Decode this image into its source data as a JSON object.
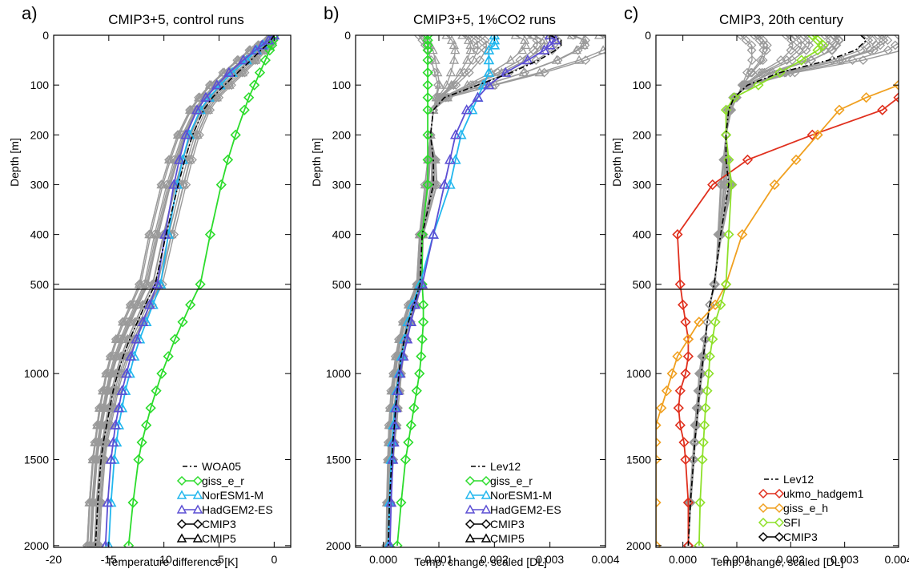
{
  "chart_data": [
    {
      "type": "line",
      "panel_letter": "a)",
      "title": "CMIP3+5, control runs",
      "xlabel": "Temperature difference [K]",
      "ylabel": "Depth [m]",
      "xlim": [
        -20,
        1.5
      ],
      "x_ticks": [
        "-20",
        "-15",
        "-10",
        "-5",
        "0"
      ],
      "y_axis": {
        "upper_range": [
          0,
          510
        ],
        "lower_range": [
          510,
          2010
        ],
        "upper_ticks": [
          "0",
          "100",
          "200",
          "300",
          "400",
          "500"
        ],
        "lower_ticks": [
          "1000",
          "1500",
          "2000"
        ]
      },
      "depth": [
        0,
        10,
        20,
        30,
        50,
        75,
        100,
        125,
        150,
        200,
        250,
        300,
        400,
        500,
        600,
        700,
        800,
        900,
        1000,
        1100,
        1200,
        1300,
        1400,
        1500,
        1750,
        2000
      ],
      "reference": {
        "name": "WOA05",
        "values": [
          0,
          -0.3,
          -0.7,
          -1.2,
          -2.1,
          -3.3,
          -4.5,
          -5.6,
          -6.4,
          -7.4,
          -8.1,
          -8.7,
          -9.8,
          -10.8,
          -11.7,
          -12.4,
          -13.1,
          -13.7,
          -14.2,
          -14.6,
          -14.9,
          -15.2,
          -15.5,
          -15.7,
          -16.0,
          -16.2
        ]
      },
      "highlight_series": [
        {
          "name": "giss_e_r",
          "color": "#2cdc2c",
          "marker": "diamond",
          "values": [
            0,
            -0.1,
            -0.2,
            -0.4,
            -0.8,
            -1.3,
            -1.8,
            -2.3,
            -2.7,
            -3.5,
            -4.2,
            -4.8,
            -5.8,
            -6.7,
            -7.6,
            -8.3,
            -9.0,
            -9.6,
            -10.2,
            -10.7,
            -11.2,
            -11.6,
            -12.0,
            -12.3,
            -12.8,
            -13.2
          ]
        },
        {
          "name": "NorESM1-M",
          "color": "#22b7ee",
          "marker": "triangle",
          "values": [
            0,
            -0.5,
            -1.0,
            -1.6,
            -2.5,
            -3.8,
            -4.9,
            -5.9,
            -6.7,
            -7.7,
            -8.3,
            -8.8,
            -9.6,
            -10.3,
            -11.0,
            -11.6,
            -12.2,
            -12.7,
            -13.1,
            -13.5,
            -13.8,
            -14.1,
            -14.3,
            -14.5,
            -14.8,
            -15.0
          ]
        },
        {
          "name": "HadGEM2-ES",
          "color": "#5c4fd4",
          "marker": "triangle",
          "values": [
            0,
            -0.5,
            -1.1,
            -1.7,
            -2.8,
            -4.1,
            -5.2,
            -6.2,
            -7.0,
            -8.0,
            -8.6,
            -9.1,
            -9.9,
            -10.6,
            -11.3,
            -11.9,
            -12.5,
            -13.0,
            -13.4,
            -13.8,
            -14.1,
            -14.4,
            -14.6,
            -14.8,
            -15.1,
            -15.3
          ]
        }
      ],
      "ensemble": [
        {
          "label": "CMIP3",
          "marker": "diamond",
          "color": "#9a9a9a",
          "members": 12,
          "spread": [
            0,
            -0.7,
            -1.5,
            -2.3,
            -3.4,
            -4.7,
            -5.9,
            -6.9,
            -7.7,
            -8.8,
            -9.6,
            -10.3,
            -11.4,
            -12.3,
            -13.1,
            -13.8,
            -14.4,
            -14.9,
            -15.3,
            -15.6,
            -15.9,
            -16.1,
            -16.3,
            -16.5,
            -16.8,
            -17.0
          ]
        },
        {
          "label": "CMIP5",
          "marker": "triangle",
          "color": "#9a9a9a",
          "members": 12
        }
      ],
      "legend": {
        "position": "lower-right",
        "entries": [
          {
            "label": "WOA05",
            "style": "dashdot",
            "color": "#000000"
          },
          {
            "label": "giss_e_r",
            "marker": "diamond",
            "color": "#2cdc2c"
          },
          {
            "label": "NorESM1-M",
            "marker": "triangle",
            "color": "#22b7ee"
          },
          {
            "label": "HadGEM2-ES",
            "marker": "triangle",
            "color": "#5c4fd4"
          },
          {
            "label": "CMIP3",
            "marker": "diamond",
            "color": "#000000"
          },
          {
            "label": "CMIP5",
            "marker": "triangle",
            "color": "#000000"
          }
        ]
      }
    },
    {
      "type": "line",
      "panel_letter": "b)",
      "title": "CMIP3+5, 1%CO2 runs",
      "xlabel": "Temp. change, scaled [DL]",
      "ylabel": "Depth [m]",
      "xlim": [
        -0.0005,
        0.004
      ],
      "x_ticks": [
        "0.000",
        "0.001",
        "0.002",
        "0.003",
        "0.004"
      ],
      "y_axis": {
        "upper_range": [
          0,
          510
        ],
        "lower_range": [
          510,
          2010
        ],
        "upper_ticks": [
          "0",
          "100",
          "200",
          "300",
          "400",
          "500"
        ],
        "lower_ticks": [
          "1000",
          "1500",
          "2000"
        ]
      },
      "depth": [
        0,
        10,
        20,
        30,
        50,
        75,
        100,
        125,
        150,
        200,
        250,
        300,
        400,
        500,
        600,
        700,
        800,
        900,
        1000,
        1100,
        1200,
        1300,
        1400,
        1500,
        1750,
        2000
      ],
      "reference": {
        "name": "Lev12",
        "values": [
          0.003,
          0.0032,
          0.0032,
          0.0031,
          0.0028,
          0.0023,
          0.0017,
          0.0011,
          0.0009,
          0.00085,
          0.0009,
          0.0009,
          0.0007,
          0.00066,
          0.00055,
          0.00045,
          0.00038,
          0.00032,
          0.00028,
          0.00025,
          0.00022,
          0.0002,
          0.00017,
          0.00015,
          0.00011,
          9e-05
        ]
      },
      "highlight_series": [
        {
          "name": "giss_e_r",
          "color": "#2cdc2c",
          "marker": "diamond",
          "values": [
            0.0008,
            0.0008,
            0.0008,
            0.0008,
            0.0008,
            0.0008,
            0.0008,
            0.0008,
            0.0008,
            0.0008,
            0.0008,
            0.0008,
            0.0007,
            0.0007,
            0.00072,
            0.00072,
            0.0007,
            0.00068,
            0.00065,
            0.0006,
            0.00055,
            0.0005,
            0.00045,
            0.0004,
            0.00032,
            0.00025
          ]
        },
        {
          "name": "NorESM1-M",
          "color": "#22b7ee",
          "marker": "triangle",
          "values": [
            0.002,
            0.002,
            0.002,
            0.0019,
            0.0019,
            0.0019,
            0.0018,
            0.0017,
            0.0016,
            0.0014,
            0.0013,
            0.0012,
            0.0009,
            0.00066,
            0.00052,
            0.00044,
            0.00038,
            0.00033,
            0.00028,
            0.00024,
            0.00021,
            0.00018,
            0.00016,
            0.00014,
            0.00011,
            9e-05
          ]
        },
        {
          "name": "HadGEM2-ES",
          "color": "#5c4fd4",
          "marker": "triangle",
          "values": [
            0.003,
            0.0031,
            0.003,
            0.0029,
            0.0026,
            0.0022,
            0.0019,
            0.0017,
            0.0015,
            0.0013,
            0.0012,
            0.0011,
            0.0009,
            0.0007,
            0.00057,
            0.0005,
            0.00043,
            0.00036,
            0.0003,
            0.00026,
            0.00023,
            0.00021,
            0.00019,
            0.00017,
            0.00014,
            0.00012
          ]
        }
      ],
      "ensemble": [
        {
          "label": "CMIP3",
          "marker": "diamond",
          "color": "#9a9a9a",
          "members": 12,
          "spread": [
            0.00068,
            0.00075,
            0.0008,
            0.00085,
            0.0009,
            0.00095,
            0.001,
            0.00095,
            0.0009,
            0.00085,
            0.0008,
            0.00075,
            0.00065,
            0.0006,
            0.00045,
            0.00035,
            0.00028,
            0.00022,
            0.00018,
            0.00014,
            0.00012,
            0.0001,
            9e-05,
            8e-05,
            6e-05,
            5e-05
          ]
        },
        {
          "label": "CMIP5",
          "marker": "triangle",
          "color": "#9a9a9a",
          "members": 12
        }
      ],
      "legend": {
        "position": "lower-right",
        "entries": [
          {
            "label": "Lev12",
            "style": "dashdot",
            "color": "#000000"
          },
          {
            "label": "giss_e_r",
            "marker": "diamond",
            "color": "#2cdc2c"
          },
          {
            "label": "NorESM1-M",
            "marker": "triangle",
            "color": "#22b7ee"
          },
          {
            "label": "HadGEM2-ES",
            "marker": "triangle",
            "color": "#5c4fd4"
          },
          {
            "label": "CMIP3",
            "marker": "diamond",
            "color": "#000000"
          },
          {
            "label": "CMIP5",
            "marker": "triangle",
            "color": "#000000"
          }
        ]
      }
    },
    {
      "type": "line",
      "panel_letter": "c)",
      "title": "CMIP3, 20th century",
      "xlabel": "Temp.  change, scaled [DL]",
      "ylabel": "Depth [m]",
      "xlim": [
        -0.0005,
        0.004
      ],
      "x_ticks": [
        "0.000",
        "0.001",
        "0.002",
        "0.003",
        "0.004"
      ],
      "y_axis": {
        "upper_range": [
          0,
          510
        ],
        "lower_range": [
          510,
          2010
        ],
        "upper_ticks": [
          "0",
          "100",
          "200",
          "300",
          "400",
          "500"
        ],
        "lower_ticks": [
          "1000",
          "1500",
          "2000"
        ]
      },
      "depth": [
        0,
        10,
        20,
        30,
        50,
        75,
        100,
        125,
        150,
        200,
        250,
        300,
        400,
        500,
        600,
        700,
        800,
        900,
        1000,
        1100,
        1200,
        1300,
        1400,
        1500,
        1750,
        2000
      ],
      "reference": {
        "name": "Lev12",
        "values": [
          0.0033,
          0.0034,
          0.0033,
          0.0032,
          0.0027,
          0.0018,
          0.0012,
          0.00095,
          0.00085,
          0.0008,
          0.0008,
          0.00085,
          0.0007,
          0.00058,
          0.0005,
          0.00045,
          0.00042,
          0.00038,
          0.00034,
          0.00031,
          0.00028,
          0.00025,
          0.00022,
          0.0002,
          0.00014,
          0.0001
        ]
      },
      "highlight_series": [
        {
          "name": "ukmo_hadgem1",
          "color": "#e0301e",
          "marker": "diamond",
          "values": [
            0.0045,
            0.0045,
            0.0045,
            0.0045,
            0.0045,
            0.0045,
            0.0043,
            0.004,
            0.0037,
            0.0024,
            0.0012,
            0.00055,
            -0.0001,
            -5e-05,
            0.0,
            5e-05,
            0.0001,
            0.0001,
            5e-05,
            -5e-05,
            -8e-05,
            -5e-05,
            2e-05,
            5e-05,
            0.0001,
            0.0001
          ]
        },
        {
          "name": "giss_e_h",
          "color": "#f0a020",
          "marker": "diamond",
          "values": [
            0.0045,
            0.0045,
            0.0045,
            0.0045,
            0.0045,
            0.0045,
            0.004,
            0.0034,
            0.0029,
            0.0025,
            0.0021,
            0.0017,
            0.0011,
            0.0008,
            0.0006,
            0.0003,
            0.0001,
            -0.0001,
            -0.0002,
            -0.0003,
            -0.0004,
            -0.0005,
            -0.0005,
            -0.0005,
            -0.0005,
            -0.0005
          ]
        },
        {
          "name": "SFI",
          "color": "#8ee02a",
          "marker": "diamond",
          "values": [
            0.0024,
            0.0025,
            0.0026,
            0.0025,
            0.0022,
            0.0018,
            0.0014,
            0.00095,
            0.0008,
            0.0008,
            0.00085,
            0.0009,
            0.00085,
            0.0008,
            0.0007,
            0.0006,
            0.00055,
            0.0005,
            0.00048,
            0.00045,
            0.00042,
            0.0004,
            0.00038,
            0.00036,
            0.00032,
            0.0003
          ]
        }
      ],
      "ensemble": [
        {
          "label": "CMIP3",
          "marker": "diamond",
          "color": "#9a9a9a",
          "members": 12,
          "spread": [
            0.0011,
            0.0012,
            0.0013,
            0.0013,
            0.0013,
            0.0012,
            0.0011,
            0.001,
            0.0009,
            0.0008,
            0.00075,
            0.0007,
            0.00065,
            0.0006,
            0.0005,
            0.00045,
            0.0004,
            0.00035,
            0.0003,
            0.00028,
            0.00025,
            0.00022,
            0.0002,
            0.00018,
            0.00012,
            0.0001
          ]
        }
      ],
      "legend": {
        "position": "lower-right",
        "entries": [
          {
            "label": "Lev12",
            "style": "dashdot",
            "color": "#000000"
          },
          {
            "label": "ukmo_hadgem1",
            "marker": "diamond",
            "color": "#e0301e"
          },
          {
            "label": "giss_e_h",
            "marker": "diamond",
            "color": "#f0a020"
          },
          {
            "label": "SFI",
            "marker": "diamond",
            "color": "#8ee02a"
          },
          {
            "label": "CMIP3",
            "marker": "diamond",
            "color": "#000000"
          }
        ]
      }
    }
  ]
}
